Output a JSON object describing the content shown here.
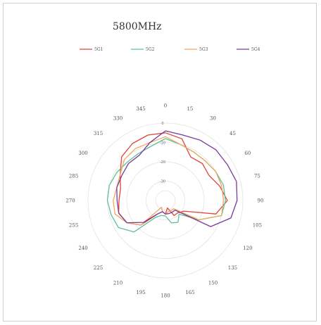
{
  "chart_data": {
    "type": "polar-line",
    "title": "5800MHz",
    "angles": [
      0,
      15,
      30,
      45,
      60,
      75,
      90,
      105,
      120,
      135,
      150,
      165,
      180,
      195,
      210,
      225,
      240,
      255,
      270,
      285,
      300,
      315,
      330,
      345
    ],
    "radial_ticks": [
      0,
      -10,
      -20,
      -30
    ],
    "rlim": [
      -40,
      0
    ],
    "legend_position": "top",
    "series": [
      {
        "name": "5G1",
        "color": "#e0443c",
        "values": [
          -5,
          -7,
          -14,
          -13,
          -14,
          -11,
          -8,
          -13,
          -29,
          -31,
          -31,
          -36,
          -33,
          -34,
          -32,
          -22,
          -17,
          -15,
          -16,
          -16,
          -13,
          -8,
          -6,
          -5
        ]
      },
      {
        "name": "5G2",
        "color": "#5fc09a",
        "values": [
          -8,
          -10,
          -11,
          -11,
          -10,
          -9,
          -9,
          -10,
          -20,
          -30,
          -27,
          -28,
          -32,
          -32,
          -30,
          -17,
          -12,
          -11,
          -10,
          -10,
          -11,
          -12,
          -12,
          -11
        ]
      },
      {
        "name": "5G3",
        "color": "#f2a75c",
        "values": [
          -7,
          -10,
          -11,
          -11,
          -10,
          -10,
          -10,
          -10,
          -20,
          -34,
          -34,
          -34,
          -33,
          -34,
          -36,
          -22,
          -17,
          -13,
          -13,
          -14,
          -13,
          -10,
          -9,
          -9
        ]
      },
      {
        "name": "5G4",
        "color": "#7a3a9a",
        "values": [
          -4,
          -5,
          -4,
          -3,
          -3,
          -2,
          -3,
          -5,
          -13,
          -33,
          -33,
          -33,
          -33,
          -34,
          -32,
          -24,
          -17,
          -15,
          -15,
          -14,
          -14,
          -13,
          -13,
          -9
        ]
      }
    ]
  }
}
